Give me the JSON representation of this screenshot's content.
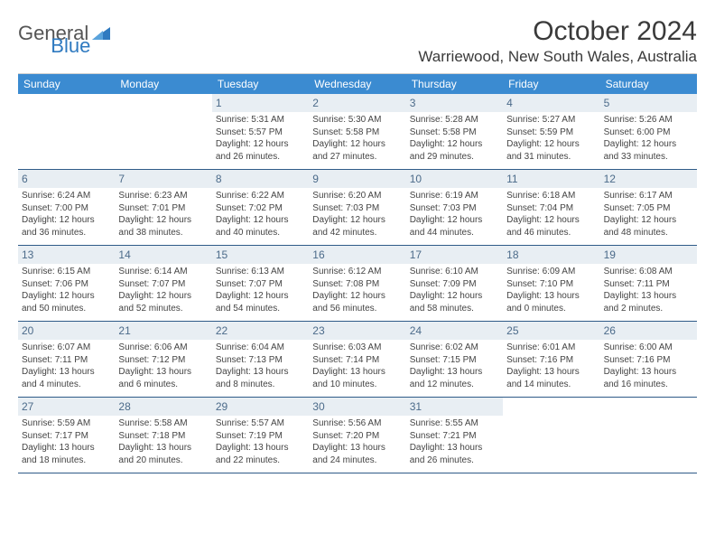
{
  "logo": {
    "word1": "General",
    "word2": "Blue"
  },
  "title": "October 2024",
  "location": "Warriewood, New South Wales, Australia",
  "colors": {
    "header_bg": "#3b8bd1",
    "header_fg": "#ffffff",
    "daynum_bg": "#e8eef3",
    "daynum_fg": "#4c6b8a",
    "row_divider": "#2f5b88",
    "logo_accent": "#2f7ac0"
  },
  "day_labels": [
    "Sunday",
    "Monday",
    "Tuesday",
    "Wednesday",
    "Thursday",
    "Friday",
    "Saturday"
  ],
  "leading_blanks": 2,
  "days": [
    {
      "n": "1",
      "sunrise": "5:31 AM",
      "sunset": "5:57 PM",
      "daylight1": "Daylight: 12 hours",
      "daylight2": "and 26 minutes."
    },
    {
      "n": "2",
      "sunrise": "5:30 AM",
      "sunset": "5:58 PM",
      "daylight1": "Daylight: 12 hours",
      "daylight2": "and 27 minutes."
    },
    {
      "n": "3",
      "sunrise": "5:28 AM",
      "sunset": "5:58 PM",
      "daylight1": "Daylight: 12 hours",
      "daylight2": "and 29 minutes."
    },
    {
      "n": "4",
      "sunrise": "5:27 AM",
      "sunset": "5:59 PM",
      "daylight1": "Daylight: 12 hours",
      "daylight2": "and 31 minutes."
    },
    {
      "n": "5",
      "sunrise": "5:26 AM",
      "sunset": "6:00 PM",
      "daylight1": "Daylight: 12 hours",
      "daylight2": "and 33 minutes."
    },
    {
      "n": "6",
      "sunrise": "6:24 AM",
      "sunset": "7:00 PM",
      "daylight1": "Daylight: 12 hours",
      "daylight2": "and 36 minutes."
    },
    {
      "n": "7",
      "sunrise": "6:23 AM",
      "sunset": "7:01 PM",
      "daylight1": "Daylight: 12 hours",
      "daylight2": "and 38 minutes."
    },
    {
      "n": "8",
      "sunrise": "6:22 AM",
      "sunset": "7:02 PM",
      "daylight1": "Daylight: 12 hours",
      "daylight2": "and 40 minutes."
    },
    {
      "n": "9",
      "sunrise": "6:20 AM",
      "sunset": "7:03 PM",
      "daylight1": "Daylight: 12 hours",
      "daylight2": "and 42 minutes."
    },
    {
      "n": "10",
      "sunrise": "6:19 AM",
      "sunset": "7:03 PM",
      "daylight1": "Daylight: 12 hours",
      "daylight2": "and 44 minutes."
    },
    {
      "n": "11",
      "sunrise": "6:18 AM",
      "sunset": "7:04 PM",
      "daylight1": "Daylight: 12 hours",
      "daylight2": "and 46 minutes."
    },
    {
      "n": "12",
      "sunrise": "6:17 AM",
      "sunset": "7:05 PM",
      "daylight1": "Daylight: 12 hours",
      "daylight2": "and 48 minutes."
    },
    {
      "n": "13",
      "sunrise": "6:15 AM",
      "sunset": "7:06 PM",
      "daylight1": "Daylight: 12 hours",
      "daylight2": "and 50 minutes."
    },
    {
      "n": "14",
      "sunrise": "6:14 AM",
      "sunset": "7:07 PM",
      "daylight1": "Daylight: 12 hours",
      "daylight2": "and 52 minutes."
    },
    {
      "n": "15",
      "sunrise": "6:13 AM",
      "sunset": "7:07 PM",
      "daylight1": "Daylight: 12 hours",
      "daylight2": "and 54 minutes."
    },
    {
      "n": "16",
      "sunrise": "6:12 AM",
      "sunset": "7:08 PM",
      "daylight1": "Daylight: 12 hours",
      "daylight2": "and 56 minutes."
    },
    {
      "n": "17",
      "sunrise": "6:10 AM",
      "sunset": "7:09 PM",
      "daylight1": "Daylight: 12 hours",
      "daylight2": "and 58 minutes."
    },
    {
      "n": "18",
      "sunrise": "6:09 AM",
      "sunset": "7:10 PM",
      "daylight1": "Daylight: 13 hours",
      "daylight2": "and 0 minutes."
    },
    {
      "n": "19",
      "sunrise": "6:08 AM",
      "sunset": "7:11 PM",
      "daylight1": "Daylight: 13 hours",
      "daylight2": "and 2 minutes."
    },
    {
      "n": "20",
      "sunrise": "6:07 AM",
      "sunset": "7:11 PM",
      "daylight1": "Daylight: 13 hours",
      "daylight2": "and 4 minutes."
    },
    {
      "n": "21",
      "sunrise": "6:06 AM",
      "sunset": "7:12 PM",
      "daylight1": "Daylight: 13 hours",
      "daylight2": "and 6 minutes."
    },
    {
      "n": "22",
      "sunrise": "6:04 AM",
      "sunset": "7:13 PM",
      "daylight1": "Daylight: 13 hours",
      "daylight2": "and 8 minutes."
    },
    {
      "n": "23",
      "sunrise": "6:03 AM",
      "sunset": "7:14 PM",
      "daylight1": "Daylight: 13 hours",
      "daylight2": "and 10 minutes."
    },
    {
      "n": "24",
      "sunrise": "6:02 AM",
      "sunset": "7:15 PM",
      "daylight1": "Daylight: 13 hours",
      "daylight2": "and 12 minutes."
    },
    {
      "n": "25",
      "sunrise": "6:01 AM",
      "sunset": "7:16 PM",
      "daylight1": "Daylight: 13 hours",
      "daylight2": "and 14 minutes."
    },
    {
      "n": "26",
      "sunrise": "6:00 AM",
      "sunset": "7:16 PM",
      "daylight1": "Daylight: 13 hours",
      "daylight2": "and 16 minutes."
    },
    {
      "n": "27",
      "sunrise": "5:59 AM",
      "sunset": "7:17 PM",
      "daylight1": "Daylight: 13 hours",
      "daylight2": "and 18 minutes."
    },
    {
      "n": "28",
      "sunrise": "5:58 AM",
      "sunset": "7:18 PM",
      "daylight1": "Daylight: 13 hours",
      "daylight2": "and 20 minutes."
    },
    {
      "n": "29",
      "sunrise": "5:57 AM",
      "sunset": "7:19 PM",
      "daylight1": "Daylight: 13 hours",
      "daylight2": "and 22 minutes."
    },
    {
      "n": "30",
      "sunrise": "5:56 AM",
      "sunset": "7:20 PM",
      "daylight1": "Daylight: 13 hours",
      "daylight2": "and 24 minutes."
    },
    {
      "n": "31",
      "sunrise": "5:55 AM",
      "sunset": "7:21 PM",
      "daylight1": "Daylight: 13 hours",
      "daylight2": "and 26 minutes."
    }
  ],
  "labels": {
    "sunrise_prefix": "Sunrise: ",
    "sunset_prefix": "Sunset: "
  }
}
